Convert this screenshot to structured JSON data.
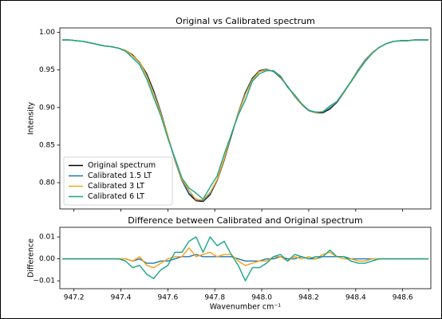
{
  "chart_data": [
    {
      "type": "line",
      "title": "Original vs Calibrated spectrum",
      "ylabel": "Intensity",
      "x": [
        947.15,
        947.18,
        947.21,
        947.24,
        947.27,
        947.3,
        947.33,
        947.36,
        947.39,
        947.42,
        947.45,
        947.48,
        947.51,
        947.54,
        947.57,
        947.6,
        947.63,
        947.66,
        947.69,
        947.72,
        947.75,
        947.78,
        947.81,
        947.84,
        947.87,
        947.9,
        947.93,
        947.96,
        947.99,
        948.02,
        948.05,
        948.08,
        948.11,
        948.14,
        948.17,
        948.2,
        948.23,
        948.26,
        948.29,
        948.32,
        948.35,
        948.38,
        948.41,
        948.44,
        948.47,
        948.5,
        948.53,
        948.56,
        948.59,
        948.62,
        948.65,
        948.68,
        948.71
      ],
      "series": [
        {
          "name": "Original spectrum",
          "color": "#000000",
          "values": [
            0.99,
            0.99,
            0.989,
            0.988,
            0.986,
            0.984,
            0.982,
            0.981,
            0.979,
            0.976,
            0.97,
            0.96,
            0.945,
            0.922,
            0.894,
            0.862,
            0.83,
            0.803,
            0.785,
            0.776,
            0.775,
            0.784,
            0.803,
            0.83,
            0.862,
            0.893,
            0.92,
            0.939,
            0.949,
            0.951,
            0.948,
            0.94,
            0.928,
            0.915,
            0.904,
            0.896,
            0.893,
            0.893,
            0.898,
            0.907,
            0.92,
            0.935,
            0.95,
            0.963,
            0.973,
            0.98,
            0.985,
            0.988,
            0.989,
            0.989,
            0.99,
            0.99,
            0.99
          ]
        },
        {
          "name": "Calibrated 1.5 LT",
          "color": "#1f77b4",
          "values": [
            0.99,
            0.99,
            0.989,
            0.988,
            0.986,
            0.984,
            0.982,
            0.981,
            0.979,
            0.976,
            0.969,
            0.96,
            0.943,
            0.92,
            0.893,
            0.861,
            0.83,
            0.804,
            0.786,
            0.778,
            0.776,
            0.785,
            0.804,
            0.831,
            0.863,
            0.893,
            0.919,
            0.938,
            0.948,
            0.951,
            0.948,
            0.941,
            0.928,
            0.915,
            0.905,
            0.896,
            0.893,
            0.894,
            0.899,
            0.908,
            0.921,
            0.935,
            0.95,
            0.963,
            0.973,
            0.98,
            0.985,
            0.988,
            0.989,
            0.989,
            0.99,
            0.99,
            0.99
          ]
        },
        {
          "name": "Calibrated 3 LT",
          "color": "#f5a31a",
          "values": [
            0.99,
            0.99,
            0.989,
            0.988,
            0.986,
            0.984,
            0.982,
            0.981,
            0.979,
            0.976,
            0.969,
            0.961,
            0.942,
            0.918,
            0.892,
            0.862,
            0.831,
            0.804,
            0.79,
            0.777,
            0.777,
            0.787,
            0.804,
            0.832,
            0.864,
            0.892,
            0.917,
            0.937,
            0.948,
            0.95,
            0.949,
            0.941,
            0.927,
            0.916,
            0.904,
            0.897,
            0.893,
            0.895,
            0.901,
            0.908,
            0.92,
            0.935,
            0.949,
            0.962,
            0.973,
            0.98,
            0.985,
            0.988,
            0.989,
            0.989,
            0.99,
            0.99,
            0.99
          ]
        },
        {
          "name": "Calibrated 6 LT",
          "color": "#1aa68a",
          "values": [
            0.99,
            0.99,
            0.989,
            0.988,
            0.986,
            0.984,
            0.982,
            0.981,
            0.979,
            0.975,
            0.966,
            0.957,
            0.938,
            0.913,
            0.889,
            0.859,
            0.833,
            0.806,
            0.793,
            0.786,
            0.778,
            0.794,
            0.809,
            0.838,
            0.864,
            0.89,
            0.91,
            0.935,
            0.945,
            0.949,
            0.949,
            0.942,
            0.927,
            0.917,
            0.905,
            0.896,
            0.894,
            0.894,
            0.902,
            0.908,
            0.921,
            0.934,
            0.948,
            0.961,
            0.972,
            0.98,
            0.985,
            0.988,
            0.989,
            0.989,
            0.99,
            0.99,
            0.99
          ]
        }
      ],
      "xlim": [
        947.14,
        948.72
      ],
      "ylim": [
        0.765,
        1.006
      ],
      "yticks": [
        {
          "value": 0.8,
          "label": "0.80"
        },
        0.85,
        {
          "value": 0.9,
          "label": "0.90"
        },
        0.95,
        {
          "value": 1.0,
          "label": "1.00"
        }
      ],
      "legend": "lower left"
    },
    {
      "type": "line",
      "title": "Difference between Calibrated and Original spectrum",
      "ylabel": "Difference",
      "xlabel": "Wavenumber cm⁻¹",
      "x": [
        947.15,
        947.18,
        947.21,
        947.24,
        947.27,
        947.3,
        947.33,
        947.36,
        947.39,
        947.42,
        947.45,
        947.48,
        947.51,
        947.54,
        947.57,
        947.6,
        947.63,
        947.66,
        947.69,
        947.72,
        947.75,
        947.78,
        947.81,
        947.84,
        947.87,
        947.9,
        947.93,
        947.96,
        947.99,
        948.02,
        948.05,
        948.08,
        948.11,
        948.14,
        948.17,
        948.2,
        948.23,
        948.26,
        948.29,
        948.32,
        948.35,
        948.38,
        948.41,
        948.44,
        948.47,
        948.5,
        948.53,
        948.56,
        948.59,
        948.62,
        948.65,
        948.68,
        948.71
      ],
      "series": [
        {
          "color": "#1f77b4",
          "values": [
            0,
            0,
            0,
            0,
            0,
            0,
            0,
            0,
            0,
            0,
            -0.001,
            0,
            -0.002,
            -0.002,
            -0.001,
            -0.001,
            0,
            0.001,
            0.001,
            0.002,
            0.001,
            0.001,
            0.001,
            0.001,
            0.001,
            0,
            -0.001,
            -0.001,
            -0.001,
            0,
            0,
            0.001,
            0,
            0,
            0.001,
            0,
            0,
            0.001,
            0.001,
            0.001,
            0.001,
            0,
            0,
            0,
            0,
            0,
            0,
            0,
            0,
            0,
            0,
            0,
            0
          ]
        },
        {
          "color": "#f5a31a",
          "values": [
            0,
            0,
            0,
            0,
            0,
            0,
            0,
            0,
            0,
            0,
            -0.001,
            0.001,
            -0.003,
            -0.004,
            -0.002,
            0,
            0.001,
            0.001,
            0.005,
            0.001,
            0.002,
            0.003,
            0.001,
            0.002,
            0.002,
            -0.001,
            -0.003,
            -0.002,
            -0.001,
            -0.001,
            0.001,
            0.001,
            -0.001,
            0.001,
            0,
            0.001,
            0,
            0.002,
            0.003,
            0.001,
            0,
            0,
            -0.001,
            -0.001,
            0,
            0,
            0,
            0,
            0,
            0,
            0,
            0,
            0
          ]
        },
        {
          "color": "#1aa68a",
          "values": [
            0,
            0,
            0,
            0,
            0,
            0,
            0,
            0,
            0,
            -0.001,
            -0.004,
            -0.003,
            -0.007,
            -0.009,
            -0.005,
            -0.003,
            0.003,
            0.003,
            0.008,
            0.01,
            0.003,
            0.01,
            0.006,
            0.008,
            0.002,
            -0.003,
            -0.01,
            -0.004,
            -0.004,
            -0.002,
            0.001,
            0.002,
            -0.001,
            0.002,
            0.001,
            0,
            0.001,
            0.001,
            0.004,
            0.001,
            0.001,
            -0.001,
            -0.002,
            -0.002,
            -0.001,
            0,
            0,
            0,
            0,
            0,
            0,
            0,
            0
          ]
        }
      ],
      "xlim": [
        947.14,
        948.72
      ],
      "ylim": [
        -0.0136,
        0.0144
      ],
      "xticks": [
        947.2,
        947.4,
        947.6,
        947.8,
        {
          "value": 948,
          "label": "948.0"
        },
        948.2,
        948.4,
        948.6
      ],
      "yticks": [
        {
          "value": -0.01,
          "label": "−0.01"
        },
        {
          "value": 0,
          "label": "0.00"
        },
        0.01
      ]
    }
  ]
}
